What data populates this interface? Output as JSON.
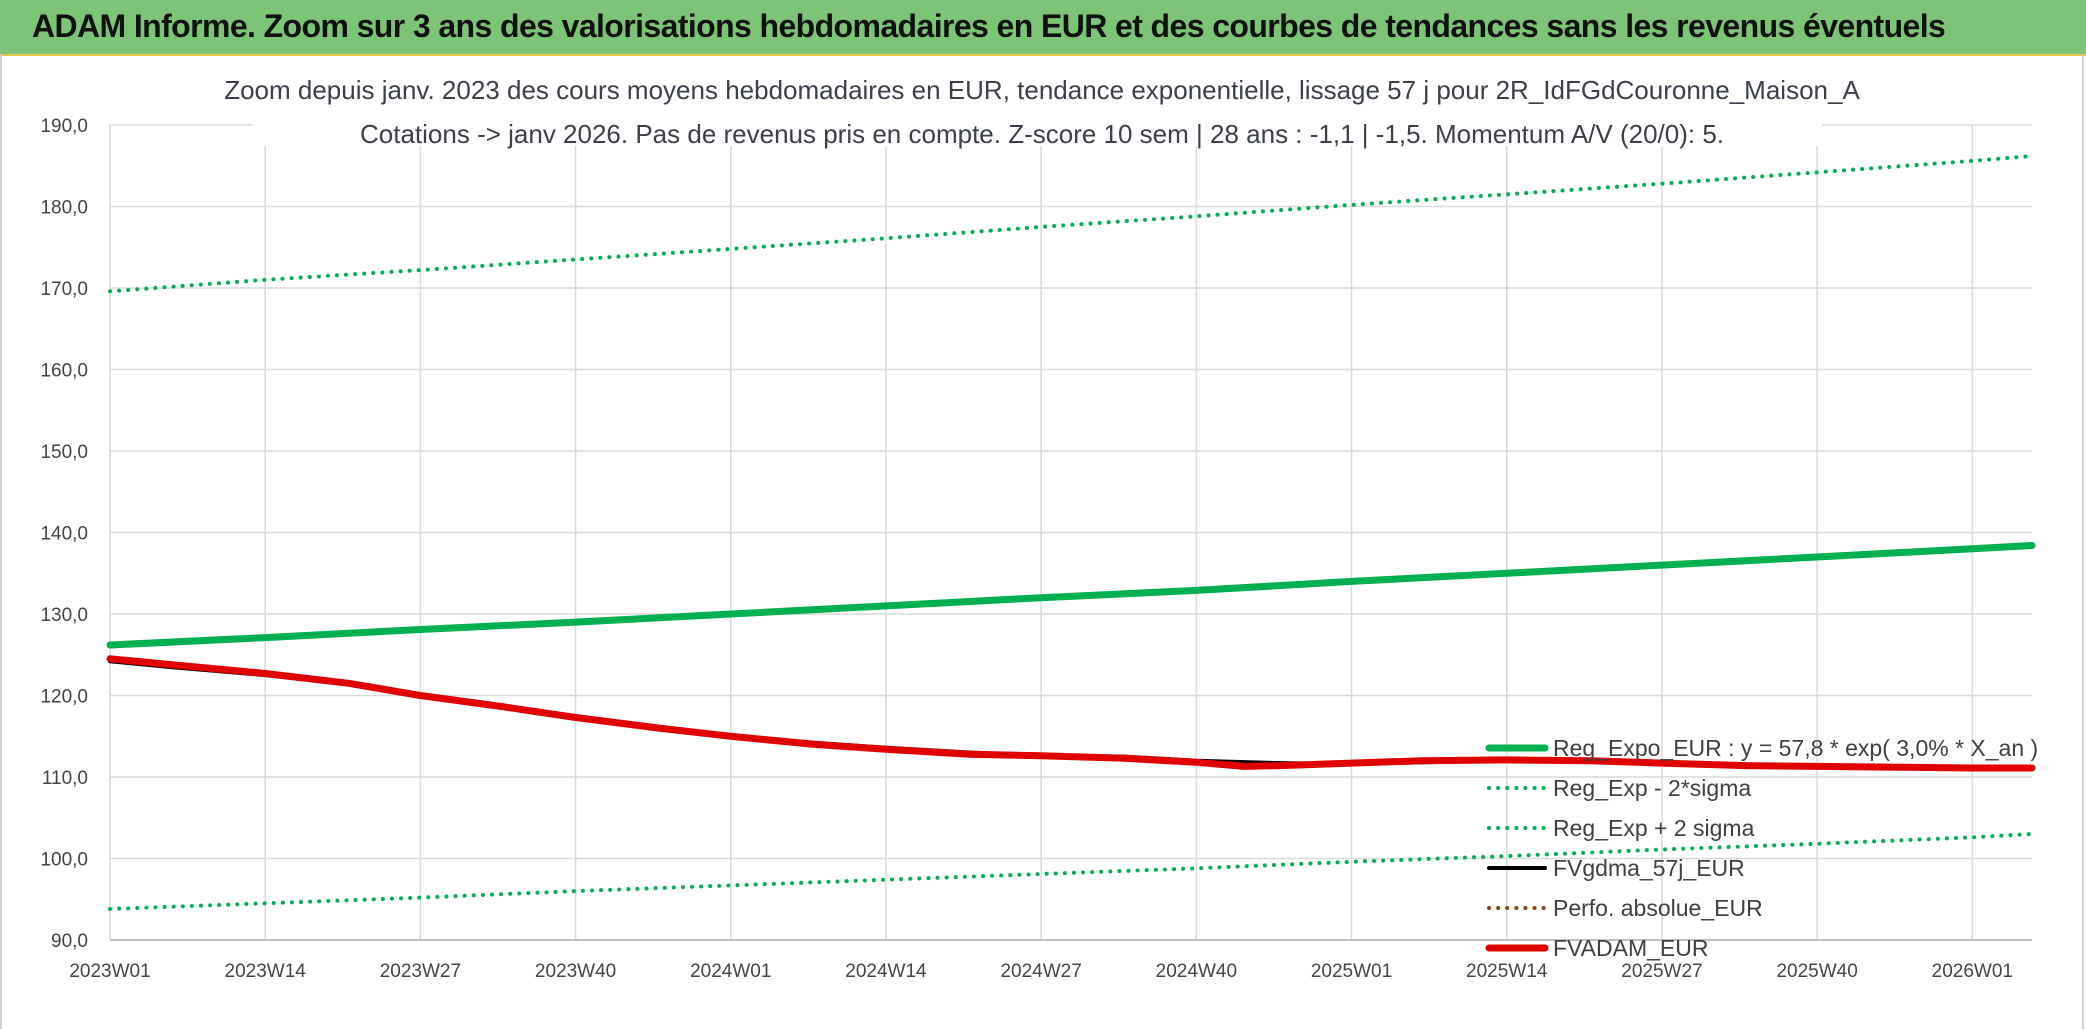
{
  "header": {
    "title": "ADAM Informe. Zoom sur 3 ans des valorisations hebdomadaires en EUR et des courbes de tendances sans les revenus éventuels"
  },
  "colors": {
    "header_bg": "#7cc576",
    "trend": "#00b050",
    "sigma": "#00b050",
    "fvgdma": "#000000",
    "perfo": "#8b4513",
    "fvadam": "#e00000",
    "grid": "#d9d9d9"
  },
  "chart_data": {
    "type": "line",
    "title_lines": [
      "Zoom depuis janv. 2023 des cours moyens hebdomadaires en EUR, tendance exponentielle, lissage 57 j pour 2R_IdFGdCouronne_Maison_A",
      "Cotations -> janv 2026. Pas de revenus pris en compte. Z-score 10 sem | 28 ans : -1,1 | -1,5. Momentum A/V (20/0): 5."
    ],
    "x_ticks": [
      "2023W01",
      "2023W14",
      "2023W27",
      "2023W40",
      "2024W01",
      "2024W14",
      "2024W27",
      "2024W40",
      "2025W01",
      "2025W14",
      "2025W27",
      "2025W40",
      "2026W01"
    ],
    "x_tick_weeks": [
      0,
      13,
      26,
      39,
      52,
      65,
      78,
      91,
      104,
      117,
      130,
      143,
      156
    ],
    "x_range_weeks": [
      0,
      161
    ],
    "y_ticks": [
      "90,0",
      "100,0",
      "110,0",
      "120,0",
      "130,0",
      "140,0",
      "150,0",
      "160,0",
      "170,0",
      "180,0",
      "190,0"
    ],
    "ylim": [
      90,
      190
    ],
    "grid": true,
    "legend_position": "bottom-right",
    "series": [
      {
        "name": "Reg_Expo_EUR : y = 57,8 * exp( 3,0% *  X_an )",
        "style": "solid-thick",
        "color": "#00b050",
        "x": [
          0,
          13,
          26,
          39,
          52,
          65,
          78,
          91,
          104,
          117,
          130,
          143,
          156,
          161
        ],
        "y": [
          126.2,
          127.1,
          128.1,
          129.0,
          130.0,
          131.0,
          132.0,
          132.9,
          134.0,
          135.0,
          136.0,
          137.0,
          138.0,
          138.4
        ]
      },
      {
        "name": "Reg_Exp - 2*sigma",
        "style": "dotted",
        "color": "#00b050",
        "x": [
          0,
          13,
          26,
          39,
          52,
          65,
          78,
          91,
          104,
          117,
          130,
          143,
          156,
          161
        ],
        "y": [
          93.8,
          94.5,
          95.2,
          96.0,
          96.7,
          97.4,
          98.1,
          98.8,
          99.6,
          100.3,
          101.1,
          101.8,
          102.6,
          103.0
        ]
      },
      {
        "name": "Reg_Exp + 2 sigma",
        "style": "dotted",
        "color": "#00b050",
        "x": [
          0,
          13,
          26,
          39,
          52,
          65,
          78,
          91,
          104,
          117,
          130,
          143,
          156,
          161
        ],
        "y": [
          169.6,
          171.0,
          172.2,
          173.5,
          174.8,
          176.1,
          177.5,
          178.8,
          180.2,
          181.5,
          182.8,
          184.2,
          185.6,
          186.2
        ]
      },
      {
        "name": "FVgdma_57j_EUR",
        "style": "solid",
        "color": "#000000",
        "x": [
          0,
          5,
          13,
          20,
          26,
          33,
          39,
          46,
          52,
          59,
          65,
          72,
          78,
          85,
          91,
          98,
          104,
          110,
          117,
          124,
          130,
          137,
          143,
          150,
          156,
          161
        ],
        "y": [
          124.2,
          123.5,
          122.5,
          121.4,
          120.0,
          118.6,
          117.3,
          116.1,
          115.1,
          114.2,
          113.6,
          113.0,
          112.6,
          112.5,
          112.0,
          111.7,
          111.6,
          111.8,
          112.0,
          111.9,
          111.6,
          111.4,
          111.3,
          111.2,
          111.2,
          111.2
        ]
      },
      {
        "name": "Perfo. absolue_EUR",
        "style": "dotted",
        "color": "#8b4513",
        "x": [],
        "y": []
      },
      {
        "name": "FVADAM_EUR",
        "style": "solid-thick",
        "color": "#e00000",
        "x": [
          0,
          5,
          13,
          20,
          26,
          33,
          39,
          46,
          52,
          59,
          65,
          72,
          78,
          85,
          91,
          95,
          98,
          104,
          110,
          117,
          124,
          130,
          137,
          143,
          150,
          156,
          161
        ],
        "y": [
          124.5,
          123.8,
          122.7,
          121.5,
          120.0,
          118.6,
          117.3,
          116.0,
          115.0,
          114.0,
          113.4,
          112.8,
          112.6,
          112.3,
          111.8,
          111.3,
          111.4,
          111.7,
          112.0,
          112.1,
          112.0,
          111.7,
          111.4,
          111.3,
          111.2,
          111.1,
          111.1
        ]
      }
    ]
  }
}
